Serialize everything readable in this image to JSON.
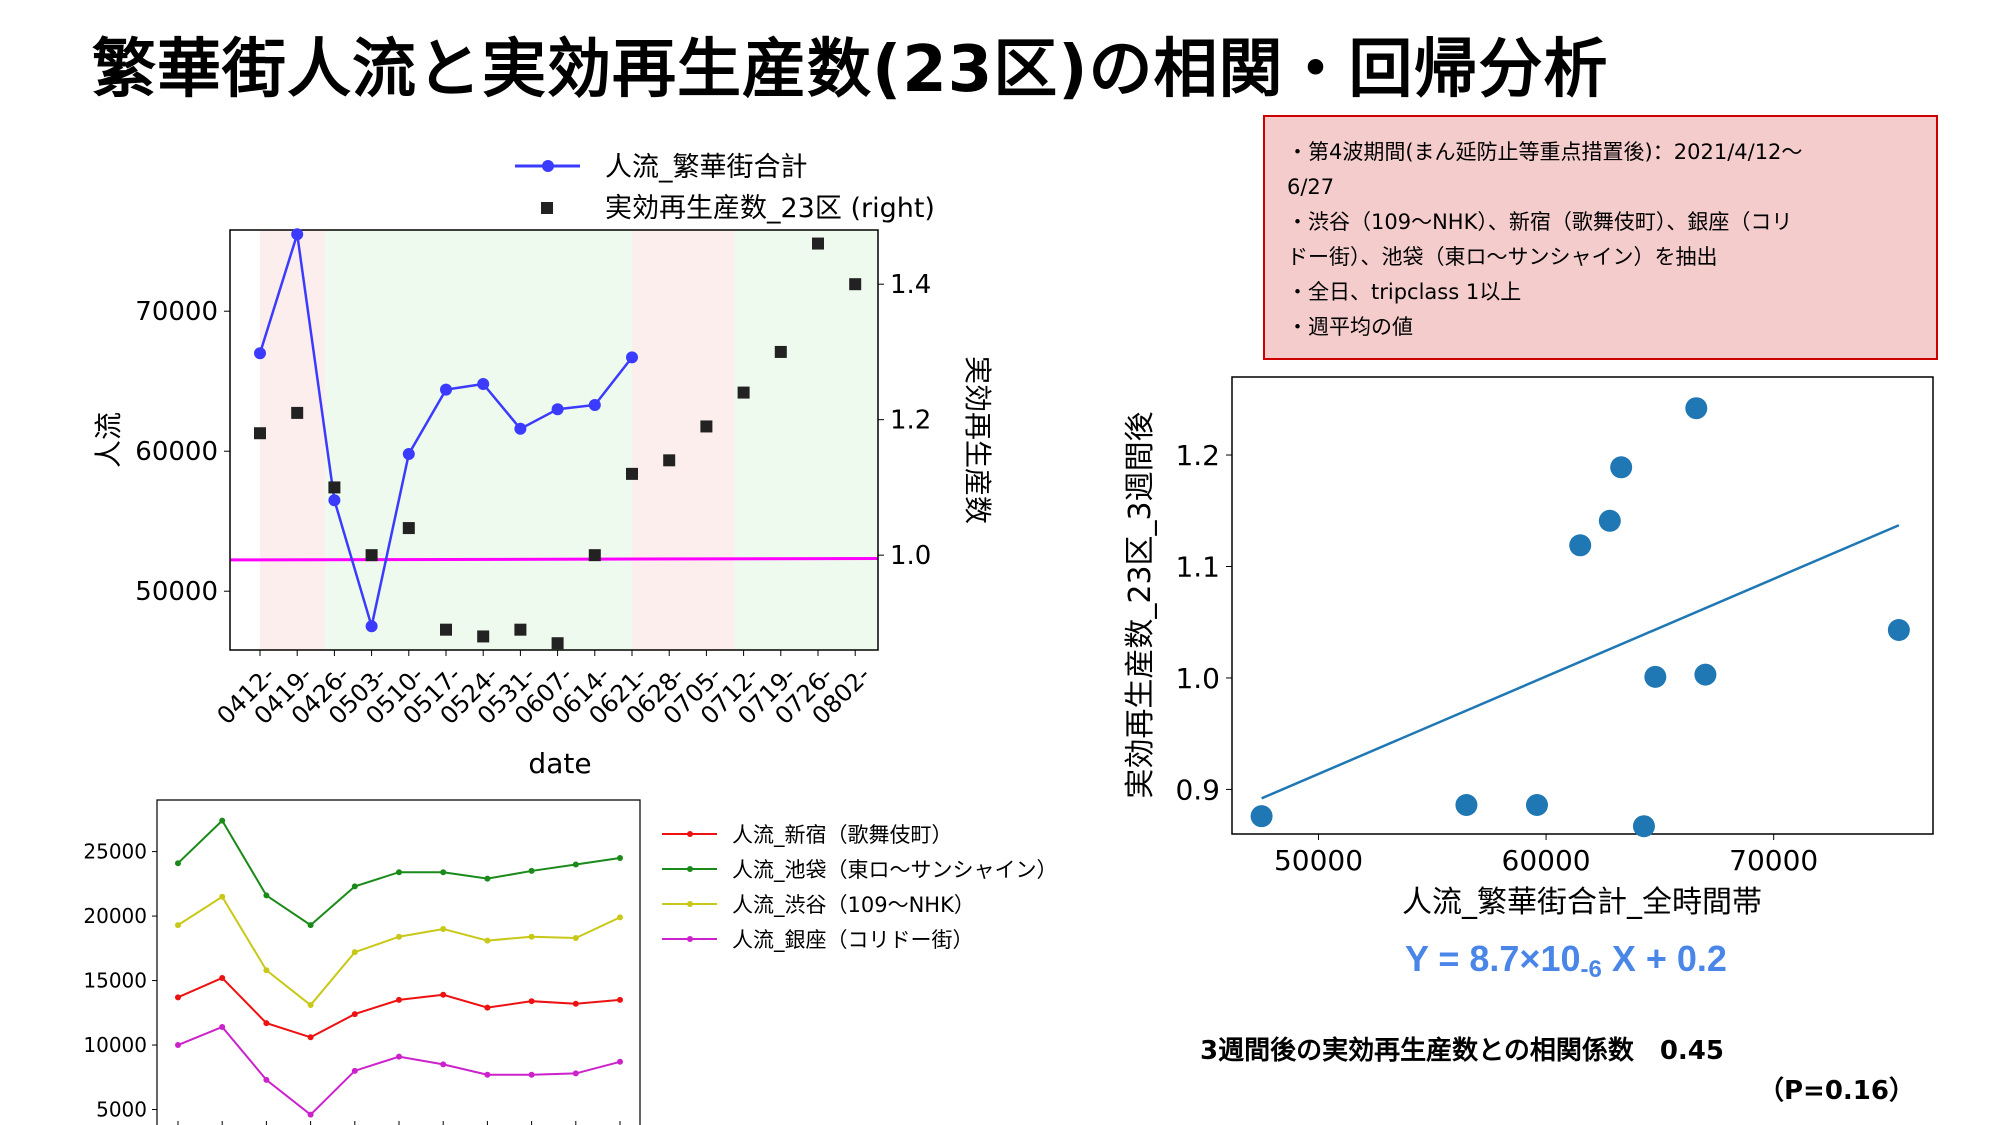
{
  "page": {
    "title": "繁華街人流と実効再生産数(23区)の相関・回帰分析",
    "notes": [
      "・第4波期間(まん延防止等重点措置後)：2021/4/12〜",
      "6/27",
      "・渋谷（109〜NHK）、新宿（歌舞伎町）、銀座（コリ",
      "ドー街）、池袋（東ロ〜サンシャイン）を抽出",
      "・全日、tripclass 1以上",
      "・週平均の値"
    ],
    "equation_prefix": "Y = 8.7×10",
    "equation_exp": "-6",
    "equation_suffix": " X + 0.2",
    "correlation": "3週間後の実効再生産数との相関係数　0.45",
    "p_value": "（P=0.16）"
  },
  "chart_data": [
    {
      "type": "line",
      "x": [
        "0412-",
        "0419-",
        "0426-",
        "0503-",
        "0510-",
        "0517-",
        "0524-",
        "0531-",
        "0607-",
        "0614-",
        "0621-",
        "0628-",
        "0705-",
        "0712-",
        "0719-",
        "0726-",
        "0802-"
      ],
      "xlabel": "date",
      "ylabel": "人流",
      "y2label": "実効再生産数",
      "ylim": [
        45800,
        75800
      ],
      "y2lim": [
        0.86,
        1.48
      ],
      "yticks": [
        50000,
        60000,
        70000
      ],
      "y2ticks": [
        1.0,
        1.2,
        1.4
      ],
      "legend_position": "top-center",
      "series": [
        {
          "name": "人流_繁華街合計",
          "color": "#3b3bff",
          "style": "line-marker",
          "values": [
            67000,
            75500,
            56500,
            47500,
            59800,
            64400,
            64800,
            61600,
            63000,
            63300,
            66700,
            null,
            null,
            null,
            null,
            null,
            null
          ]
        },
        {
          "name": "実効再生産数_23区 (right)",
          "color": "#222222",
          "style": "square",
          "axis": "right",
          "values": [
            1.18,
            1.21,
            1.1,
            1.0,
            1.04,
            0.89,
            0.88,
            0.89,
            0.87,
            1.0,
            1.12,
            1.14,
            1.19,
            1.24,
            1.3,
            1.46,
            1.4
          ]
        }
      ],
      "reference_line": {
        "axis": "right",
        "from": 0.993,
        "to": 0.995,
        "color": "#ff00ff"
      },
      "shaded_bands": [
        {
          "from": 0,
          "to": 1.75,
          "color": "#fdeeee"
        },
        {
          "from": 1.75,
          "to": 10.0,
          "color": "#eefaee"
        },
        {
          "from": 10.0,
          "to": 12.75,
          "color": "#fdeeee"
        },
        {
          "from": 12.75,
          "to": 16.75,
          "color": "#eefaee"
        }
      ]
    },
    {
      "type": "line",
      "ylim": [
        3800,
        29000
      ],
      "yticks": [
        5000,
        10000,
        15000,
        20000,
        25000
      ],
      "legend_position": "right",
      "series": [
        {
          "name": "人流_新宿（歌舞伎町）",
          "color": "#ee1111",
          "values": [
            13700,
            15200,
            11700,
            10600,
            12400,
            13500,
            13900,
            12900,
            13400,
            13200,
            13500
          ]
        },
        {
          "name": "人流_池袋（東ロ～サンシャイン）",
          "color": "#1a8a1a",
          "values": [
            24100,
            27400,
            21600,
            19300,
            22300,
            23400,
            23400,
            22900,
            23500,
            24000,
            24500
          ]
        },
        {
          "name": "人流_渋谷（109〜NHK）",
          "color": "#c8c818",
          "values": [
            19300,
            21500,
            15800,
            13100,
            17200,
            18400,
            19000,
            18100,
            18400,
            18300,
            19900
          ]
        },
        {
          "name": "人流_銀座（コリドー街）",
          "color": "#cc22cc",
          "values": [
            10000,
            11400,
            7300,
            4600,
            8000,
            9100,
            8500,
            7700,
            7700,
            7800,
            8700
          ]
        }
      ]
    },
    {
      "type": "scatter",
      "xlabel": "人流_繁華街合計_全時間帯",
      "ylabel": "実効再生産数_23区_3週間後",
      "xlim": [
        46200,
        77000
      ],
      "ylim": [
        0.86,
        1.27
      ],
      "xticks": [
        50000,
        60000,
        70000
      ],
      "yticks": [
        0.9,
        1.0,
        1.1,
        1.2
      ],
      "color": "#1f77b4",
      "points": [
        {
          "x": 47500,
          "y": 0.876
        },
        {
          "x": 56500,
          "y": 0.886
        },
        {
          "x": 59600,
          "y": 0.886
        },
        {
          "x": 61500,
          "y": 1.119
        },
        {
          "x": 62800,
          "y": 1.141
        },
        {
          "x": 63300,
          "y": 1.189
        },
        {
          "x": 64300,
          "y": 0.867
        },
        {
          "x": 64800,
          "y": 1.001
        },
        {
          "x": 66600,
          "y": 1.242
        },
        {
          "x": 67000,
          "y": 1.003
        },
        {
          "x": 75500,
          "y": 1.043
        }
      ],
      "regression": {
        "x": [
          47500,
          75500
        ],
        "y": [
          0.892,
          1.137
        ]
      }
    }
  ]
}
